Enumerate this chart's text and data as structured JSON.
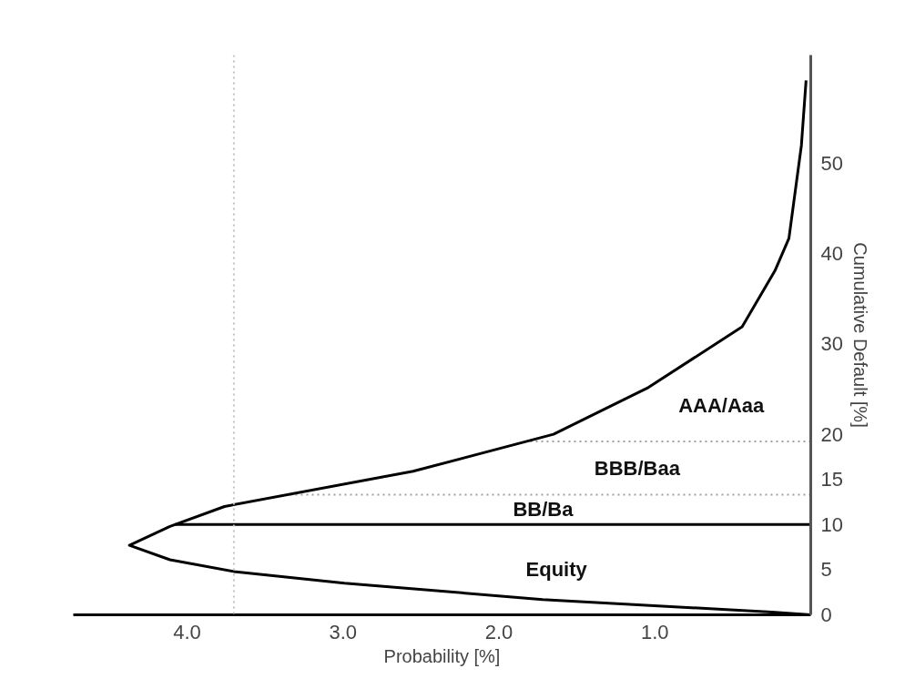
{
  "chart_data": {
    "type": "line",
    "xlabel": "Probability [%]",
    "ylabel": "Cumulative Default [%]",
    "xlim": [
      4.73,
      0
    ],
    "xticks": [
      {
        "value": 1,
        "label": "1.0"
      },
      {
        "value": 2,
        "label": "2.0"
      },
      {
        "value": 3,
        "label": "3.0"
      },
      {
        "value": 4,
        "label": "4.0"
      }
    ],
    "ylim": [
      0,
      62
    ],
    "yticks": [
      0,
      5,
      10,
      15,
      20,
      30,
      40,
      50
    ],
    "grid": false,
    "line_style": "solid",
    "series": [
      {
        "color": "#000000",
        "x": [
          0,
          0.25,
          1.72,
          2.99,
          3.7,
          4.11,
          4.37,
          4.11,
          3.76,
          2.55,
          1.65,
          1.04,
          0.44,
          0.23,
          0.14,
          0.06,
          0.03
        ],
        "values": [
          0,
          0.3,
          1.7,
          3.5,
          4.8,
          6.1,
          7.7,
          9.8,
          12.0,
          15.9,
          20.0,
          25.2,
          31.9,
          38.1,
          41.7,
          52.0,
          59.2
        ]
      }
    ],
    "ref_lines": [
      {
        "axis": "x",
        "value": 3.7,
        "color": "#c0c0c0",
        "line_style": "dotted"
      },
      {
        "axis": "y",
        "value": 10,
        "color": "#000000",
        "line_style": "solid"
      },
      {
        "axis": "y",
        "value": 13.3,
        "color": "#a0a0a0",
        "line_style": "dotted"
      },
      {
        "axis": "y",
        "value": 19.2,
        "color": "#a0a0a0",
        "line_style": "dotted"
      }
    ],
    "annotations": [
      "Equity",
      "BB/Ba",
      "BBB/Baa",
      "AAA/Aaa"
    ]
  }
}
